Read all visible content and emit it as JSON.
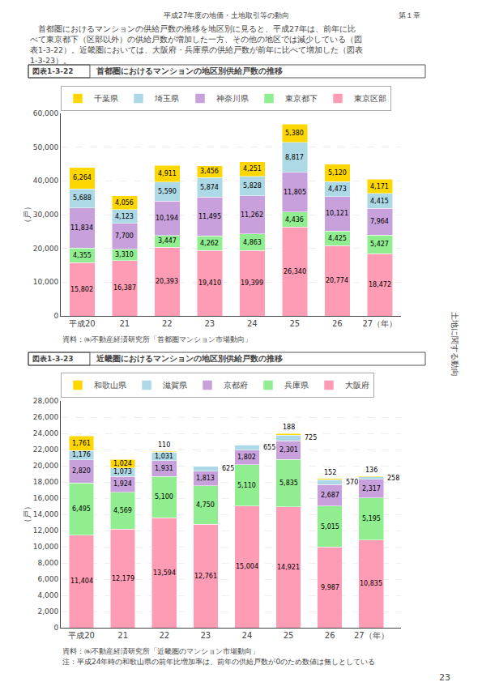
{
  "annotations": [
    "平成27年度の地価・土地取引等の動向",
    "第１章",
    "　首都圏におけるマンションの供給戸数の推移を地区別に見ると、平成27年は、前年に比",
    "べて東京都下（区部以外）の供給戸数が増加した一方、その他の地区では減少している（図",
    "表1-3-22）。近畿圏においては、大阪府・兵庫県の供給戸数が前年に比べて増加した（図表",
    "1-3-23）。",
    "土地に関する動向",
    "23"
  ],
  "chart_data": [
    {
      "type": "bar",
      "stacked": true,
      "data_labels": true,
      "grid": true,
      "legend": "top",
      "title": "首都圏におけるマンションの地区別供給戸数の推移",
      "annotations": [
        "図表1-3-22",
        "資料：㈱不動産経済研究所「首都圏マンション市場動向」"
      ],
      "ylabel": "（戸）",
      "categories": [
        "平成20",
        "21",
        "22",
        "23",
        "24",
        "25",
        "26",
        "27（年）"
      ],
      "series": [
        {
          "name": "東京区部",
          "color": "#FF9CB5",
          "values": [
            15802,
            16387,
            20393,
            19410,
            19399,
            26340,
            20774,
            18472
          ],
          "value_labels": [
            "15,802",
            "16,387",
            "20,393",
            "19,410",
            "19,399",
            "26,340",
            "20,774",
            "18,472"
          ]
        },
        {
          "name": "東京都下",
          "color": "#90EE90",
          "values": [
            4355,
            3310,
            3447,
            4262,
            4863,
            4436,
            4425,
            5427
          ],
          "value_labels": [
            "4,355",
            "3,310",
            "3,447",
            "4,262",
            "4,863",
            "4,436",
            "4,425",
            "5,427"
          ]
        },
        {
          "name": "神奈川県",
          "color": "#C8A0DC",
          "values": [
            11834,
            7700,
            10194,
            11495,
            11262,
            11805,
            10121,
            7964
          ],
          "value_labels": [
            "11,834",
            "7,700",
            "10,194",
            "11,495",
            "11,262",
            "11,805",
            "10,121",
            "7,964"
          ]
        },
        {
          "name": "埼玉県",
          "color": "#ADD8E6",
          "values": [
            5688,
            4123,
            5590,
            5874,
            5828,
            8817,
            4473,
            4415
          ],
          "value_labels": [
            "5,688",
            "4,123",
            "5,590",
            "5,874",
            "5,828",
            "8,817",
            "4,473",
            "4,415"
          ]
        },
        {
          "name": "千葉県",
          "color": "#FFD700",
          "values": [
            6264,
            4056,
            4911,
            3456,
            4251,
            5380,
            5120,
            4171
          ],
          "value_labels": [
            "6,264",
            "4,056",
            "4,911",
            "3,456",
            "4,251",
            "5,380",
            "5,120",
            "4,171"
          ]
        }
      ],
      "ylim": [
        0,
        60000
      ],
      "yticks": [
        0,
        {
          "value": 10000,
          "label": "10,000"
        },
        {
          "value": 20000,
          "label": "20,000"
        },
        {
          "value": 30000,
          "label": "30,000"
        },
        {
          "value": 40000,
          "label": "40,000"
        },
        {
          "value": 50000,
          "label": "50,000"
        },
        {
          "value": 60000,
          "label": "60,000"
        }
      ]
    },
    {
      "type": "bar",
      "stacked": true,
      "data_labels": true,
      "grid": true,
      "legend": "top",
      "title": "近畿圏におけるマンションの地区別供給戸数の推移",
      "annotations": [
        "図表1-3-23",
        "資料：㈱不動産経済研究所「近畿圏のマンション市場動向」",
        "注：平成24年時の和歌山県の前年比増加率は、前年の供給戸数が0のため数値は無しとしている"
      ],
      "ylabel": "（戸）",
      "categories": [
        "平成20",
        "21",
        "22",
        "23",
        "24",
        "25",
        "26",
        "27（年）"
      ],
      "series": [
        {
          "name": "大阪府",
          "color": "#FF9CB5",
          "values": [
            11404,
            12179,
            13594,
            12761,
            15004,
            14921,
            9987,
            10835
          ],
          "value_labels": [
            "11,404",
            "12,179",
            "13,594",
            "12,761",
            "15,004",
            "14,921",
            "9,987",
            "10,835"
          ]
        },
        {
          "name": "兵庫県",
          "color": "#90EE90",
          "values": [
            6495,
            4569,
            5100,
            4750,
            5110,
            5835,
            5015,
            5195
          ],
          "value_labels": [
            "6,495",
            "4,569",
            "5,100",
            "4,750",
            "5,110",
            "5,835",
            "5,015",
            "5,195"
          ]
        },
        {
          "name": "京都府",
          "color": "#C8A0DC",
          "values": [
            2820,
            1924,
            1931,
            1813,
            1802,
            2301,
            2687,
            2317
          ],
          "value_labels": [
            "2,820",
            "1,924",
            "1,931",
            "1,813",
            "1,802",
            "2,301",
            "2,687",
            "2,317"
          ]
        },
        {
          "name": "滋賀県",
          "color": "#ADD8E6",
          "values": [
            1176,
            1073,
            1031,
            625,
            655,
            725,
            570,
            258
          ],
          "value_labels": [
            "1,176",
            "1,073",
            "1,031",
            "625",
            "655",
            "725",
            "570",
            "258"
          ]
        },
        {
          "name": "和歌山県",
          "color": "#FFD700",
          "values": [
            1761,
            1024,
            110,
            0,
            44,
            188,
            152,
            136
          ],
          "value_labels": [
            "1,761",
            "1,024",
            "110",
            null,
            null,
            "188",
            "152",
            "136"
          ]
        }
      ],
      "ylim": [
        0,
        28000
      ],
      "yticks": [
        0,
        {
          "value": 2000,
          "label": "2,000"
        },
        {
          "value": 4000,
          "label": "4,000"
        },
        {
          "value": 6000,
          "label": "6,000"
        },
        {
          "value": 8000,
          "label": "8,000"
        },
        {
          "value": 10000,
          "label": "10,000"
        },
        {
          "value": 12000,
          "label": "12,000"
        },
        {
          "value": 14000,
          "label": "14,000"
        },
        {
          "value": 16000,
          "label": "16,000"
        },
        {
          "value": 18000,
          "label": "18,000"
        },
        {
          "value": 20000,
          "label": "20,000"
        },
        {
          "value": 22000,
          "label": "22,000"
        },
        {
          "value": 24000,
          "label": "24,000"
        },
        {
          "value": 26000,
          "label": "26,000"
        },
        {
          "value": 28000,
          "label": "28,000"
        }
      ]
    }
  ]
}
